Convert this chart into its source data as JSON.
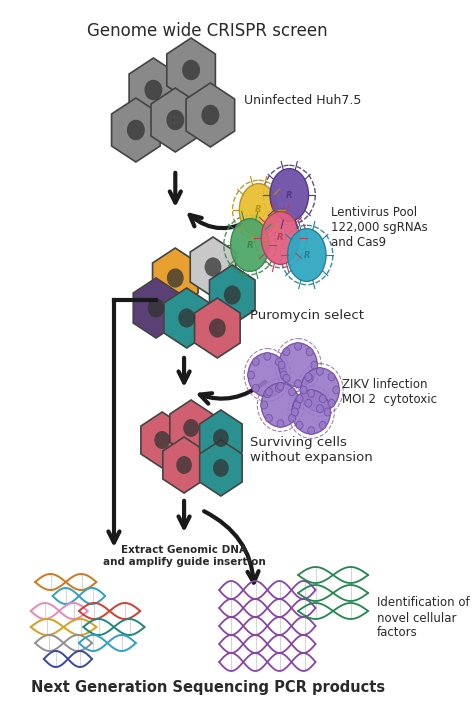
{
  "title": "Genome wide CRISPR screen",
  "bottom_label": "Next Generation Sequencing PCR products",
  "label_uninfected": "Uninfected Huh7.5",
  "label_lentivirus": "Lentivirus Pool\n122,000 sgRNAs\nand Cas9",
  "label_puromycin": "Puromycin select",
  "label_zikv": "ZIKV linfection\nMOI 2  cytotoxic",
  "label_surviving": "Surviving cells\nwithout expansion",
  "label_extract": "Extract Genomic DNA\nand amplify guide insertion",
  "label_identification": "Identification of\nnovel cellular\nfactors",
  "bg_color": "#ffffff",
  "text_color": "#2a2a2a",
  "arrow_color": "#1a1a1a",
  "hex_gray": "#898989",
  "hex_orange": "#E8A030",
  "hex_lightgray": "#C8C8C8",
  "hex_purple_dark": "#5A4075",
  "hex_teal": "#2A9090",
  "hex_red": "#D06070",
  "virus_yellow": "#E8C030",
  "virus_purple": "#7050A8",
  "virus_pink": "#E06080",
  "virus_green": "#50A868",
  "virus_teal": "#30A8C0",
  "zikv_fill": "#9878C8",
  "zikv_edge": "#7050A0",
  "dna_orange": "#D07820",
  "dna_blue": "#30A0C8",
  "dna_pink": "#E888B8",
  "dna_red": "#D04030",
  "dna_yellow": "#D8A020",
  "dna_teal2": "#208878",
  "dna_gray": "#909090",
  "dna_darkblue": "#3848A0",
  "dna_purple": "#8844A8",
  "dna_green": "#208850",
  "figsize": [
    4.74,
    7.05
  ],
  "dpi": 100
}
